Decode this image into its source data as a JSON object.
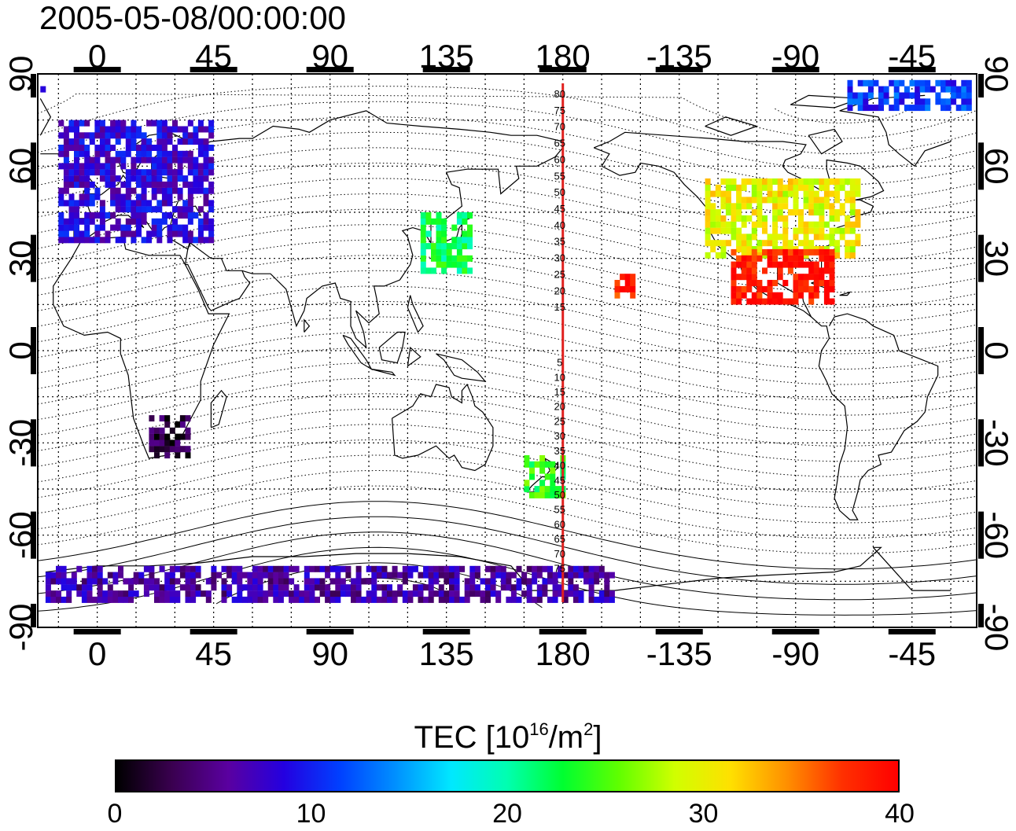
{
  "header": {
    "timestamp": "2005-05-08/00:00:00"
  },
  "map": {
    "projection": "equirectangular",
    "lon_ticks": [
      0,
      45,
      90,
      135,
      180,
      -135,
      -90,
      -45
    ],
    "lat_ticks": [
      90,
      60,
      30,
      0,
      -30,
      -60,
      -90
    ],
    "center_lon": 180,
    "dateline_color": "#e0201e",
    "magnetic_lat_labels_north": [
      80,
      75,
      70,
      65,
      60,
      55,
      50,
      45,
      40,
      35,
      30,
      25,
      20,
      15
    ],
    "magnetic_lat_labels_south": [
      5,
      10,
      15,
      20,
      25,
      30,
      35,
      40,
      45,
      50,
      55,
      60,
      65,
      70,
      75
    ]
  },
  "colorbar": {
    "title_prefix": "TEC  [10",
    "title_exp": "16",
    "title_mid": "/m",
    "title_exp2": "2",
    "title_suffix": "]",
    "min": 0,
    "max": 40,
    "ticks": [
      "0",
      "10",
      "20",
      "30",
      "40"
    ],
    "colors": [
      "#000000",
      "#3a0050",
      "#5a00a0",
      "#2400e0",
      "#0040ff",
      "#0090ff",
      "#00e8ff",
      "#00ffb0",
      "#00ff30",
      "#60ff00",
      "#d0ff00",
      "#ffe000",
      "#ff9000",
      "#ff3000",
      "#ff0000"
    ]
  },
  "chart_data": {
    "type": "heatmap",
    "title": "2005-05-08/00:00:00",
    "value_label": "TEC [10^16/m^2]",
    "zlim": [
      0,
      40
    ],
    "xlim": [
      -23,
      340
    ],
    "ylim": [
      -90,
      90
    ],
    "regions": [
      {
        "name": "Europe",
        "lon": [
          -15,
          45
        ],
        "lat": [
          35,
          75
        ],
        "tec": 8
      },
      {
        "name": "North America",
        "lon": [
          -125,
          -65
        ],
        "lat": [
          30,
          55
        ],
        "tec": 30
      },
      {
        "name": "Mexico/Gulf",
        "lon": [
          -115,
          -75
        ],
        "lat": [
          15,
          32
        ],
        "tec": 39
      },
      {
        "name": "Japan",
        "lon": [
          125,
          145
        ],
        "lat": [
          25,
          45
        ],
        "tec": 22
      },
      {
        "name": "New Zealand",
        "lon": [
          165,
          180
        ],
        "lat": [
          -48,
          -35
        ],
        "tec": 24
      },
      {
        "name": "Southern Africa",
        "lon": [
          20,
          35
        ],
        "lat": [
          -35,
          -22
        ],
        "tec": 2
      },
      {
        "name": "Hawaii",
        "lon": [
          -160,
          -153
        ],
        "lat": [
          17,
          25
        ],
        "tec": 38
      },
      {
        "name": "Antarctica",
        "lon": [
          -20,
          200
        ],
        "lat": [
          -82,
          -70
        ],
        "tec": 6
      },
      {
        "name": "Greenland",
        "lon": [
          -70,
          -20
        ],
        "lat": [
          78,
          88
        ],
        "tec": 11
      }
    ]
  }
}
